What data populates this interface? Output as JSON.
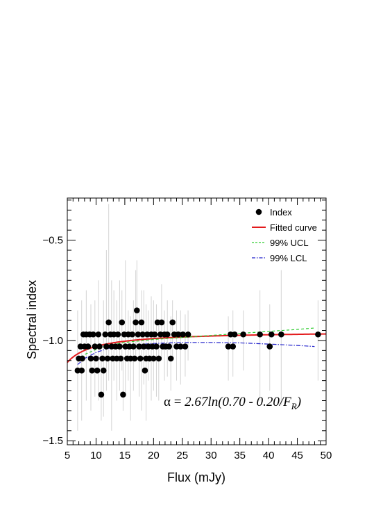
{
  "chart_data": {
    "type": "scatter",
    "title": "",
    "xlabel": "Flux (mJy)",
    "ylabel": "Spectral index",
    "xlim": [
      5,
      50
    ],
    "ylim": [
      -1.52,
      -0.29
    ],
    "x_ticks": [
      5,
      10,
      15,
      20,
      25,
      30,
      35,
      40,
      45,
      50
    ],
    "y_ticks": [
      -1.5,
      -1.0,
      -0.5
    ],
    "grid": false,
    "legend_position": "top-right",
    "legend": [
      {
        "label": "Index",
        "kind": "marker",
        "color": "#000000"
      },
      {
        "label": "Fitted curve",
        "kind": "line",
        "color": "#e31a1c",
        "dash": "solid"
      },
      {
        "label": "99% UCL",
        "kind": "line",
        "color": "#2ecc2e",
        "dash": "dashed"
      },
      {
        "label": "99% LCL",
        "kind": "line",
        "color": "#2222cc",
        "dash": "dashdot"
      }
    ],
    "annotation": {
      "prefix": "α = ",
      "main": "2.67ln(0.70 - 0.20/F",
      "sub": "R",
      "suffix": ")"
    },
    "series": [
      {
        "name": "Index",
        "kind": "points",
        "points": [
          [
            6.8,
            -1.15
          ],
          [
            7.0,
            -1.09
          ],
          [
            7.3,
            -1.03
          ],
          [
            7.5,
            -1.15
          ],
          [
            7.6,
            -1.09
          ],
          [
            7.8,
            -0.97
          ],
          [
            8.0,
            -1.03
          ],
          [
            8.3,
            -0.97
          ],
          [
            8.6,
            -1.03
          ],
          [
            8.9,
            -0.97
          ],
          [
            9.1,
            -1.09
          ],
          [
            9.3,
            -1.15
          ],
          [
            9.5,
            -0.97
          ],
          [
            9.8,
            -1.03
          ],
          [
            10.0,
            -1.09
          ],
          [
            10.2,
            -1.15
          ],
          [
            10.4,
            -0.97
          ],
          [
            10.6,
            -1.03
          ],
          [
            10.9,
            -1.27
          ],
          [
            11.1,
            -1.09
          ],
          [
            11.3,
            -1.15
          ],
          [
            11.6,
            -0.97
          ],
          [
            11.8,
            -1.03
          ],
          [
            12.0,
            -1.09
          ],
          [
            12.2,
            -0.91
          ],
          [
            12.5,
            -0.97
          ],
          [
            12.7,
            -1.03
          ],
          [
            12.9,
            -1.09
          ],
          [
            13.1,
            -0.97
          ],
          [
            13.4,
            -1.03
          ],
          [
            13.6,
            -1.09
          ],
          [
            13.8,
            -0.97
          ],
          [
            14.1,
            -1.03
          ],
          [
            14.3,
            -1.09
          ],
          [
            14.5,
            -0.91
          ],
          [
            14.7,
            -1.27
          ],
          [
            14.9,
            -0.97
          ],
          [
            15.1,
            -1.03
          ],
          [
            15.4,
            -1.09
          ],
          [
            15.6,
            -0.97
          ],
          [
            15.8,
            -1.03
          ],
          [
            16.0,
            -1.09
          ],
          [
            16.3,
            -0.97
          ],
          [
            16.5,
            -1.03
          ],
          [
            16.7,
            -1.09
          ],
          [
            16.9,
            -0.91
          ],
          [
            17.1,
            -0.85
          ],
          [
            17.3,
            -0.97
          ],
          [
            17.5,
            -1.03
          ],
          [
            17.7,
            -1.09
          ],
          [
            17.9,
            -0.91
          ],
          [
            18.1,
            -0.97
          ],
          [
            18.3,
            -1.03
          ],
          [
            18.5,
            -1.15
          ],
          [
            18.7,
            -1.09
          ],
          [
            18.9,
            -0.97
          ],
          [
            19.1,
            -1.03
          ],
          [
            19.3,
            -1.09
          ],
          [
            19.6,
            -0.97
          ],
          [
            19.8,
            -1.03
          ],
          [
            20.0,
            -1.09
          ],
          [
            20.2,
            -0.97
          ],
          [
            20.5,
            -1.03
          ],
          [
            20.7,
            -0.91
          ],
          [
            20.9,
            -1.09
          ],
          [
            21.2,
            -0.97
          ],
          [
            21.4,
            -0.91
          ],
          [
            21.6,
            -1.03
          ],
          [
            21.9,
            -0.97
          ],
          [
            22.1,
            -1.03
          ],
          [
            22.4,
            -0.97
          ],
          [
            22.7,
            -1.03
          ],
          [
            23.0,
            -1.09
          ],
          [
            23.3,
            -0.91
          ],
          [
            23.6,
            -0.97
          ],
          [
            24.0,
            -1.03
          ],
          [
            24.3,
            -0.97
          ],
          [
            24.7,
            -1.03
          ],
          [
            25.1,
            -0.97
          ],
          [
            25.5,
            -1.03
          ],
          [
            26.0,
            -0.97
          ],
          [
            33.0,
            -1.03
          ],
          [
            33.4,
            -0.97
          ],
          [
            33.8,
            -1.03
          ],
          [
            34.1,
            -0.97
          ],
          [
            35.6,
            -0.97
          ],
          [
            38.5,
            -0.97
          ],
          [
            40.2,
            -1.03
          ],
          [
            40.5,
            -0.97
          ],
          [
            42.2,
            -0.97
          ],
          [
            48.6,
            -0.97
          ]
        ],
        "error_bars": [
          [
            6.8,
            -1.45,
            -0.85
          ],
          [
            7.5,
            -1.4,
            -0.8
          ],
          [
            8.3,
            -1.3,
            -0.75
          ],
          [
            9.1,
            -1.35,
            -0.82
          ],
          [
            9.8,
            -1.28,
            -0.8
          ],
          [
            10.4,
            -1.3,
            -0.7
          ],
          [
            10.9,
            -1.4,
            -1.05
          ],
          [
            11.3,
            -1.38,
            -0.8
          ],
          [
            11.8,
            -1.25,
            -0.55
          ],
          [
            12.2,
            -1.2,
            -0.32
          ],
          [
            12.7,
            -1.45,
            -0.7
          ],
          [
            13.1,
            -1.2,
            -0.75
          ],
          [
            13.6,
            -1.3,
            -0.8
          ],
          [
            14.1,
            -1.25,
            -0.7
          ],
          [
            14.5,
            -1.15,
            -0.75
          ],
          [
            14.7,
            -1.35,
            -1.1
          ],
          [
            15.1,
            -1.28,
            -0.6
          ],
          [
            15.6,
            -1.2,
            -0.85
          ],
          [
            16.0,
            -1.4,
            -0.88
          ],
          [
            16.5,
            -1.25,
            -0.8
          ],
          [
            16.9,
            -1.1,
            -0.65
          ],
          [
            17.1,
            -1.05,
            -0.6
          ],
          [
            17.5,
            -1.28,
            -0.85
          ],
          [
            17.9,
            -1.35,
            -0.75
          ],
          [
            18.3,
            -1.22,
            -0.75
          ],
          [
            18.7,
            -1.4,
            -0.82
          ],
          [
            19.1,
            -1.2,
            -0.85
          ],
          [
            19.6,
            -1.3,
            -0.78
          ],
          [
            20.0,
            -1.25,
            -0.8
          ],
          [
            20.5,
            -1.28,
            -0.82
          ],
          [
            20.9,
            -1.3,
            -0.9
          ],
          [
            21.4,
            -1.1,
            -0.72
          ],
          [
            21.9,
            -1.2,
            -0.85
          ],
          [
            22.4,
            -1.18,
            -0.8
          ],
          [
            23.0,
            -1.25,
            -0.88
          ],
          [
            23.3,
            -1.1,
            -0.8
          ],
          [
            24.0,
            -1.2,
            -0.85
          ],
          [
            24.7,
            -1.22,
            -0.85
          ],
          [
            25.5,
            -1.18,
            -0.87
          ],
          [
            26.0,
            -1.1,
            -0.85
          ],
          [
            33.0,
            -1.2,
            -0.88
          ],
          [
            33.8,
            -1.18,
            -0.85
          ],
          [
            35.6,
            -1.15,
            -0.85
          ],
          [
            38.5,
            -1.3,
            -0.75
          ],
          [
            40.2,
            -1.25,
            -0.82
          ],
          [
            42.2,
            -1.32,
            -0.65
          ],
          [
            48.6,
            -1.2,
            -0.8
          ]
        ]
      },
      {
        "name": "Fitted curve",
        "kind": "curve",
        "formula": "2.67*ln(0.70 - 0.20/F)",
        "x_range": [
          5,
          50
        ]
      },
      {
        "name": "99% UCL",
        "kind": "curve",
        "x": [
          6.8,
          8,
          10,
          12,
          15,
          20,
          25,
          30,
          35,
          40,
          45,
          48
        ],
        "y": [
          -1.1,
          -1.07,
          -1.045,
          -1.025,
          -1.01,
          -0.995,
          -0.985,
          -0.975,
          -0.965,
          -0.955,
          -0.945,
          -0.938
        ]
      },
      {
        "name": "99% LCL",
        "kind": "curve",
        "x": [
          6.8,
          8,
          10,
          12,
          15,
          20,
          25,
          30,
          35,
          40,
          45,
          48
        ],
        "y": [
          -1.12,
          -1.09,
          -1.06,
          -1.04,
          -1.025,
          -1.015,
          -1.01,
          -1.01,
          -1.012,
          -1.018,
          -1.025,
          -1.03
        ]
      }
    ]
  }
}
